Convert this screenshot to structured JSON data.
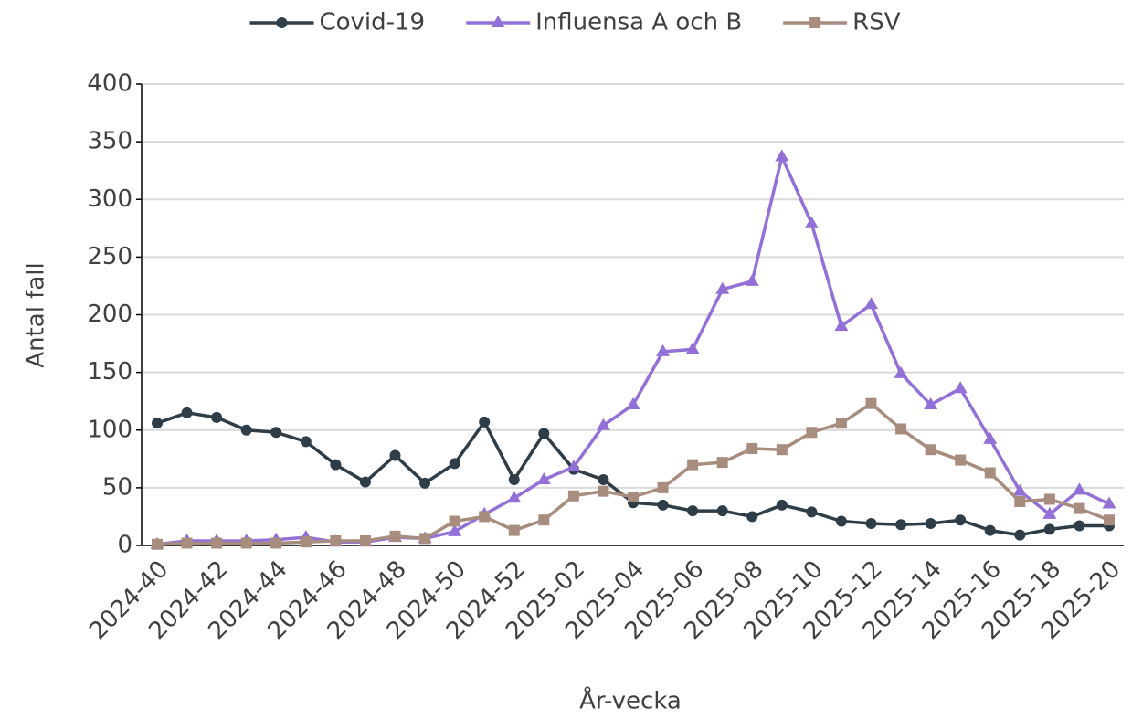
{
  "chart_data": {
    "type": "line",
    "x_label": "År-vecka",
    "y_label": "Antal fall",
    "categories": [
      "2024-40",
      null,
      "2024-42",
      null,
      "2024-44",
      null,
      "2024-46",
      null,
      "2024-48",
      null,
      "2024-50",
      null,
      "2024-52",
      null,
      "2025-02",
      null,
      "2025-04",
      null,
      "2025-06",
      null,
      "2025-08",
      null,
      "2025-10",
      null,
      "2025-12",
      null,
      "2025-14",
      null,
      "2025-16",
      null,
      "2025-18",
      null,
      "2025-20"
    ],
    "series": [
      {
        "name": "Covid-19",
        "color": "#2e3d48",
        "marker": "circle",
        "values": [
          106,
          115,
          111,
          100,
          98,
          90,
          70,
          55,
          78,
          54,
          71,
          107,
          57,
          97,
          66,
          57,
          37,
          35,
          30,
          30,
          25,
          35,
          29,
          21,
          19,
          18,
          19,
          22,
          13,
          9,
          14,
          17,
          17
        ]
      },
      {
        "name": "Influensa A och B",
        "color": "#9370d8",
        "marker": "triangle",
        "values": [
          1,
          4,
          4,
          4,
          5,
          7,
          3,
          3,
          7,
          6,
          12,
          27,
          41,
          57,
          68,
          104,
          122,
          168,
          170,
          222,
          229,
          337,
          279,
          190,
          209,
          149,
          122,
          136,
          92,
          47,
          27,
          48,
          36
        ]
      },
      {
        "name": "RSV",
        "color": "#a88c7e",
        "marker": "square",
        "values": [
          1,
          2,
          2,
          2,
          2,
          3,
          4,
          4,
          8,
          6,
          21,
          25,
          13,
          22,
          43,
          47,
          42,
          50,
          70,
          72,
          84,
          83,
          98,
          106,
          123,
          101,
          83,
          74,
          63,
          38,
          40,
          32,
          22
        ]
      }
    ],
    "ylim": [
      0,
      400
    ],
    "yticks": [
      0,
      50,
      100,
      150,
      200,
      250,
      300,
      350,
      400
    ],
    "grid": true,
    "legend": "top"
  }
}
